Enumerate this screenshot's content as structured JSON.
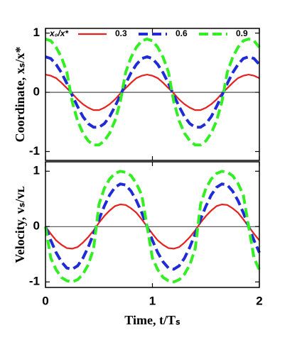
{
  "chart_data": [
    {
      "type": "line",
      "ylabel": "Coordinate, xₛ/x*",
      "legend_title": "x₀/x*",
      "legend": "top",
      "xlim": [
        0,
        2
      ],
      "xticks": [
        0,
        1,
        2
      ],
      "ylim": [
        -1.15,
        1.08
      ],
      "yticks": [
        -1,
        0,
        1
      ],
      "x": [
        0,
        0.05,
        0.1,
        0.15,
        0.2,
        0.25,
        0.3,
        0.35,
        0.4,
        0.45,
        0.5,
        0.55,
        0.6,
        0.65,
        0.7,
        0.75,
        0.8,
        0.85,
        0.9,
        0.95,
        1,
        1.05,
        1.1,
        1.15,
        1.2,
        1.25,
        1.3,
        1.35,
        1.4,
        1.45,
        1.5,
        1.55,
        1.6,
        1.65,
        1.7,
        1.75,
        1.8,
        1.85,
        1.9,
        1.95,
        2
      ],
      "series": [
        {
          "name": "0.3",
          "color": "#e8201e",
          "dashed": false,
          "values": [
            0.3,
            0.28,
            0.24,
            0.16,
            0.07,
            -0.02,
            -0.12,
            -0.2,
            -0.26,
            -0.3,
            -0.3,
            -0.26,
            -0.2,
            -0.12,
            -0.02,
            0.07,
            0.16,
            0.24,
            0.28,
            0.3,
            0.28,
            0.24,
            0.16,
            0.07,
            -0.02,
            -0.12,
            -0.2,
            -0.26,
            -0.3,
            -0.3,
            -0.26,
            -0.2,
            -0.12,
            -0.02,
            0.07,
            0.16,
            0.24,
            0.28,
            0.3,
            0.28,
            0.24
          ]
        },
        {
          "name": "0.6",
          "color": "#1f2bd6",
          "dashed": true,
          "values": [
            0.6,
            0.57,
            0.47,
            0.33,
            0.15,
            -0.05,
            -0.24,
            -0.41,
            -0.53,
            -0.59,
            -0.59,
            -0.53,
            -0.41,
            -0.24,
            -0.05,
            0.15,
            0.33,
            0.47,
            0.57,
            0.6,
            0.57,
            0.47,
            0.33,
            0.15,
            -0.05,
            -0.24,
            -0.41,
            -0.53,
            -0.59,
            -0.59,
            -0.53,
            -0.41,
            -0.24,
            -0.05,
            0.15,
            0.33,
            0.47,
            0.57,
            0.6,
            0.57,
            0.47
          ]
        },
        {
          "name": "0.9",
          "color": "#33ee22",
          "dashed": true,
          "values": [
            0.9,
            0.87,
            0.76,
            0.59,
            0.34,
            -0.16,
            -0.48,
            -0.69,
            -0.82,
            -0.89,
            -0.89,
            -0.82,
            -0.69,
            -0.48,
            -0.16,
            0.34,
            0.59,
            0.76,
            0.87,
            0.9,
            0.87,
            0.76,
            0.59,
            0.34,
            -0.16,
            -0.48,
            -0.69,
            -0.82,
            -0.89,
            -0.89,
            -0.82,
            -0.69,
            -0.48,
            -0.16,
            0.34,
            0.59,
            0.76,
            0.87,
            0.9,
            0.87,
            0.76
          ]
        }
      ]
    },
    {
      "type": "line",
      "ylabel": "Velocity, vₛ/vʟ",
      "xlabel": "Time, t/Tₛ",
      "xlim": [
        0,
        2
      ],
      "xticks": [
        0,
        1,
        2
      ],
      "ylim": [
        -1.1,
        1.17
      ],
      "yticks": [
        -1,
        0,
        1
      ],
      "x": [
        0,
        0.05,
        0.1,
        0.15,
        0.2,
        0.25,
        0.3,
        0.35,
        0.4,
        0.45,
        0.5,
        0.55,
        0.6,
        0.65,
        0.7,
        0.75,
        0.8,
        0.85,
        0.9,
        0.95,
        1,
        1.05,
        1.1,
        1.15,
        1.2,
        1.25,
        1.3,
        1.35,
        1.4,
        1.45,
        1.5,
        1.55,
        1.6,
        1.65,
        1.7,
        1.75,
        1.8,
        1.85,
        1.9,
        1.95,
        2
      ],
      "series": [
        {
          "color": "#e8201e",
          "dashed": false,
          "values": [
            0,
            -0.13,
            -0.25,
            -0.33,
            -0.39,
            -0.4,
            -0.37,
            -0.29,
            -0.19,
            -0.07,
            0.07,
            0.19,
            0.29,
            0.37,
            0.4,
            0.39,
            0.33,
            0.25,
            0.13,
            0,
            -0.13,
            -0.25,
            -0.33,
            -0.39,
            -0.4,
            -0.37,
            -0.29,
            -0.19,
            -0.07,
            0.07,
            0.19,
            0.29,
            0.37,
            0.4,
            0.39,
            0.33,
            0.25,
            0.13,
            0,
            -0.13,
            -0.25
          ]
        },
        {
          "color": "#1f2bd6",
          "dashed": true,
          "values": [
            0,
            -0.25,
            -0.47,
            -0.64,
            -0.75,
            -0.77,
            -0.71,
            -0.57,
            -0.37,
            -0.13,
            0.13,
            0.37,
            0.57,
            0.71,
            0.77,
            0.75,
            0.64,
            0.47,
            0.25,
            0,
            -0.25,
            -0.47,
            -0.64,
            -0.75,
            -0.77,
            -0.71,
            -0.57,
            -0.37,
            -0.13,
            0.13,
            0.37,
            0.57,
            0.71,
            0.77,
            0.75,
            0.64,
            0.47,
            0.25,
            0,
            -0.25,
            -0.47
          ]
        },
        {
          "color": "#33ee22",
          "dashed": true,
          "values": [
            0,
            -0.57,
            -0.78,
            -0.92,
            -0.98,
            -1,
            -0.96,
            -0.86,
            -0.69,
            -0.4,
            0.4,
            0.69,
            0.86,
            0.96,
            1,
            0.98,
            0.92,
            0.78,
            0.57,
            0,
            -0.57,
            -0.78,
            -0.92,
            -0.98,
            -1,
            -0.96,
            -0.86,
            -0.69,
            -0.4,
            0.4,
            0.69,
            0.86,
            0.96,
            1,
            0.98,
            0.92,
            0.78,
            0.57,
            0,
            -0.57,
            -0.78
          ]
        }
      ]
    }
  ]
}
